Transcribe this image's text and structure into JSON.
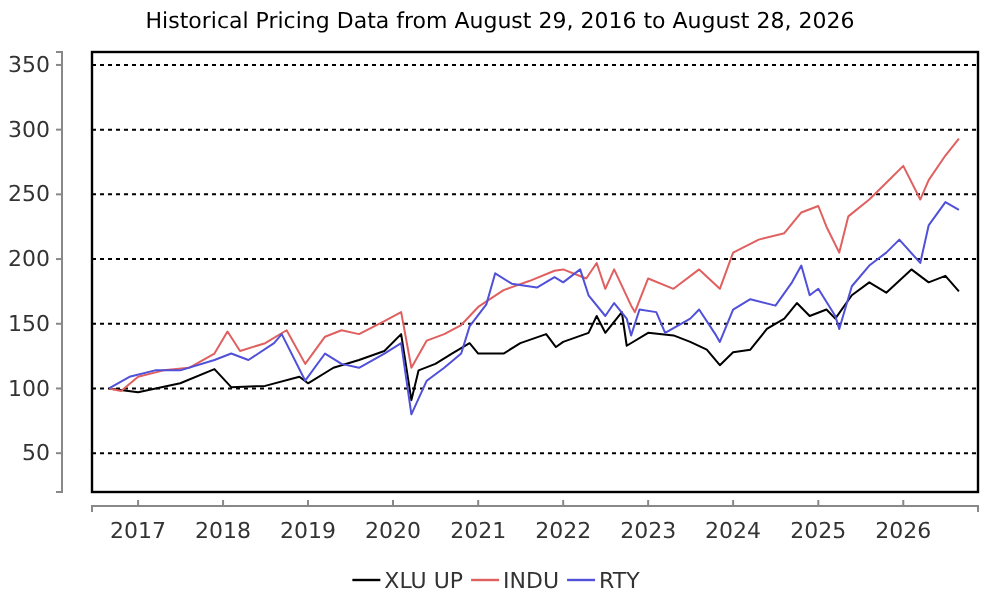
{
  "chart_data": {
    "type": "line",
    "title": "Historical Pricing Data from August 29, 2016 to August 28, 2026",
    "xlim": [
      "2016-06-17",
      "2026-11-18"
    ],
    "xticks": [
      {
        "value": "2017",
        "label": "2017"
      },
      {
        "value": "2018",
        "label": "2018"
      },
      {
        "value": "2019",
        "label": "2019"
      },
      {
        "value": "2020",
        "label": "2020"
      },
      {
        "value": "2021",
        "label": "2021"
      },
      {
        "value": "2022",
        "label": "2022"
      },
      {
        "value": "2023",
        "label": "2023"
      },
      {
        "value": "2024",
        "label": "2024"
      },
      {
        "value": "2025",
        "label": "2025"
      },
      {
        "value": "2026",
        "label": "2026"
      }
    ],
    "ylim": [
      20,
      360
    ],
    "yticks": [
      50,
      100,
      150,
      200,
      250,
      300,
      350
    ],
    "grid": "y",
    "legend": "bottom",
    "line_style": "solid",
    "marker": "none",
    "series": [
      {
        "name": "XLU UP",
        "color": "#000000",
        "x": [
          "2016-08-29",
          "2017-01-01",
          "2017-07-01",
          "2017-11-25",
          "2018-02-05",
          "2018-07-01",
          "2018-11-25",
          "2019-01-01",
          "2019-04-20",
          "2019-08-08",
          "2019-11-25",
          "2020-02-05",
          "2020-03-20",
          "2020-04-20",
          "2020-07-01",
          "2020-09-10",
          "2020-11-25",
          "2021-01-01",
          "2021-04-20",
          "2021-07-01",
          "2021-10-20",
          "2021-12-01",
          "2022-01-01",
          "2022-04-20",
          "2022-05-25",
          "2022-07-01",
          "2022-09-10",
          "2022-10-01",
          "2023-01-01",
          "2023-04-20",
          "2023-07-01",
          "2023-09-10",
          "2023-11-05",
          "2024-01-01",
          "2024-03-15",
          "2024-05-25",
          "2024-08-08",
          "2024-10-01",
          "2024-11-25",
          "2025-02-05",
          "2025-03-15",
          "2025-05-25",
          "2025-08-08",
          "2025-10-20",
          "2026-02-05",
          "2026-04-20",
          "2026-07-01",
          "2026-08-28"
        ],
        "values": [
          100,
          97,
          104,
          115,
          101,
          102,
          109,
          104,
          116,
          122,
          129,
          142,
          91,
          114,
          119,
          127,
          135,
          127,
          127,
          135,
          142,
          132,
          136,
          143,
          156,
          143,
          159,
          133,
          143,
          141,
          136,
          130,
          118,
          128,
          130,
          146,
          154,
          166,
          156,
          161,
          154,
          172,
          182,
          174,
          192,
          182,
          187,
          175
        ]
      },
      {
        "name": "INDU",
        "color": "#e06060",
        "x": [
          "2016-08-29",
          "2016-10-20",
          "2017-01-01",
          "2017-04-20",
          "2017-08-08",
          "2017-11-25",
          "2018-01-20",
          "2018-03-15",
          "2018-07-01",
          "2018-10-01",
          "2018-12-20",
          "2019-03-15",
          "2019-05-25",
          "2019-08-08",
          "2019-11-25",
          "2020-02-05",
          "2020-03-20",
          "2020-05-25",
          "2020-08-08",
          "2020-10-20",
          "2021-01-01",
          "2021-04-20",
          "2021-08-08",
          "2021-11-25",
          "2022-01-01",
          "2022-04-10",
          "2022-05-25",
          "2022-07-01",
          "2022-08-08",
          "2022-10-20",
          "2022-11-05",
          "2023-01-01",
          "2023-04-20",
          "2023-08-08",
          "2023-11-05",
          "2024-01-01",
          "2024-04-20",
          "2024-08-08",
          "2024-10-20",
          "2025-01-01",
          "2025-02-05",
          "2025-04-01",
          "2025-05-10",
          "2025-08-08",
          "2025-10-20",
          "2026-01-01",
          "2026-03-15",
          "2026-04-20",
          "2026-07-01",
          "2026-08-28"
        ],
        "values": [
          100,
          98,
          109,
          114,
          116,
          127,
          144,
          129,
          135,
          145,
          119,
          140,
          145,
          142,
          152,
          159,
          116,
          137,
          142,
          149,
          163,
          176,
          183,
          191,
          192,
          185,
          197,
          177,
          192,
          164,
          159,
          185,
          177,
          192,
          177,
          205,
          215,
          220,
          236,
          241,
          225,
          205,
          233,
          246,
          259,
          272,
          246,
          261,
          280,
          293
        ]
      },
      {
        "name": "RTY",
        "color": "#5050d8",
        "x": [
          "2016-08-29",
          "2016-11-25",
          "2017-03-15",
          "2017-07-01",
          "2017-11-25",
          "2018-02-05",
          "2018-04-20",
          "2018-08-08",
          "2018-09-10",
          "2018-12-20",
          "2019-03-15",
          "2019-05-25",
          "2019-08-08",
          "2019-11-25",
          "2020-02-05",
          "2020-03-20",
          "2020-05-25",
          "2020-08-08",
          "2020-10-20",
          "2020-11-25",
          "2021-02-05",
          "2021-03-15",
          "2021-05-25",
          "2021-09-10",
          "2021-11-25",
          "2022-01-01",
          "2022-03-15",
          "2022-04-20",
          "2022-07-01",
          "2022-08-08",
          "2022-10-01",
          "2022-10-20",
          "2022-11-25",
          "2023-02-05",
          "2023-03-15",
          "2023-07-01",
          "2023-08-08",
          "2023-10-20",
          "2023-11-05",
          "2024-01-01",
          "2024-03-15",
          "2024-07-01",
          "2024-09-10",
          "2024-10-20",
          "2024-11-25",
          "2025-01-01",
          "2025-03-15",
          "2025-04-01",
          "2025-05-25",
          "2025-08-08",
          "2025-10-20",
          "2025-12-15",
          "2026-03-15",
          "2026-04-20",
          "2026-07-01",
          "2026-08-28"
        ],
        "values": [
          100,
          109,
          114,
          114,
          122,
          127,
          122,
          135,
          142,
          106,
          127,
          119,
          116,
          127,
          135,
          80,
          106,
          116,
          127,
          148,
          165,
          189,
          181,
          178,
          186,
          182,
          192,
          172,
          156,
          166,
          154,
          141,
          161,
          159,
          143,
          154,
          161,
          141,
          136,
          161,
          169,
          164,
          182,
          195,
          172,
          177,
          156,
          146,
          179,
          195,
          205,
          215,
          197,
          226,
          244,
          238
        ]
      }
    ]
  }
}
